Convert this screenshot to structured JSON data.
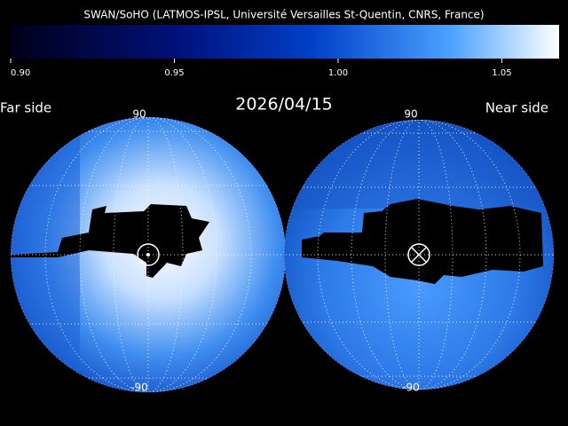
{
  "header": {
    "title": "SWAN/SoHO (LATMOS-IPSL, Université Versailles St-Quentin, CNRS, France)"
  },
  "colorbar": {
    "lim": [
      0.9,
      1.0675
    ],
    "ticks": [
      {
        "value": 0.9,
        "label": "0.90"
      },
      {
        "value": 0.95,
        "label": "0.95"
      },
      {
        "value": 1.0,
        "label": "1.00"
      },
      {
        "value": 1.05,
        "label": "1.05"
      }
    ]
  },
  "date": "2026/04/15",
  "maps": [
    {
      "side": "Far side",
      "top_label": "90",
      "bottom_label": "-90"
    },
    {
      "side": "Near side",
      "top_label": "90",
      "bottom_label": "-90"
    }
  ]
}
